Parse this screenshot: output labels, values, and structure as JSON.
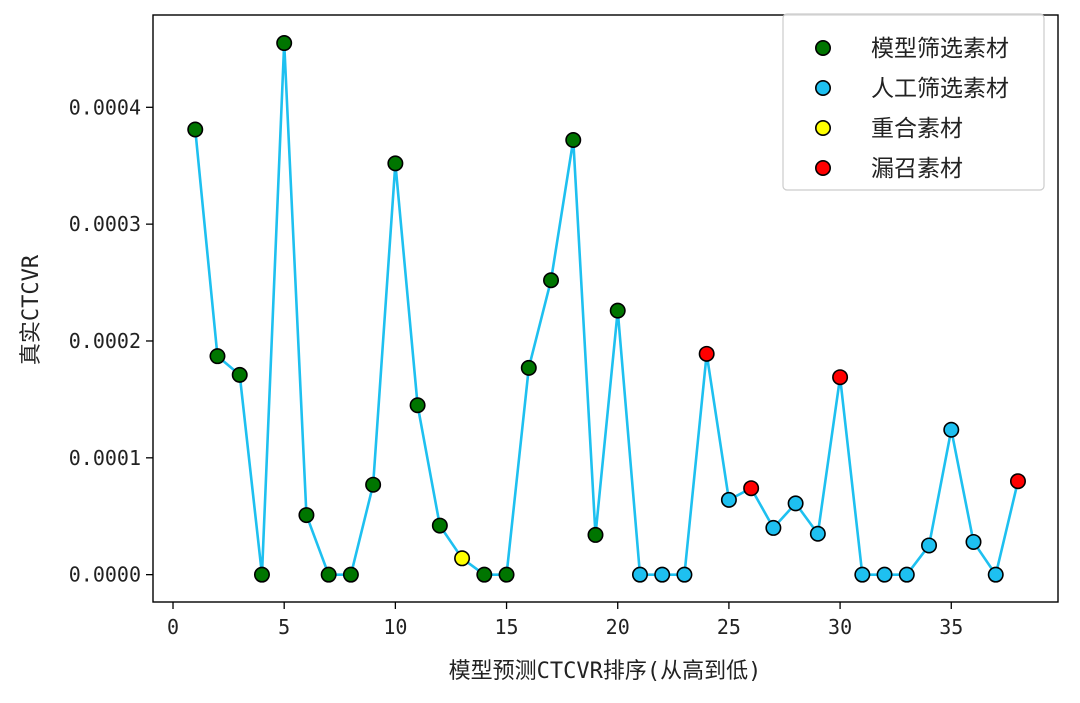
{
  "chart_data": {
    "type": "scatter",
    "title": "",
    "xlabel": "模型预测CTCVR排序(从高到低)",
    "ylabel": "真实CTCVR",
    "xlim": [
      -0.9,
      39.8
    ],
    "ylim": [
      -2.34e-05,
      0.000479
    ],
    "xticks": [
      0,
      5,
      10,
      15,
      20,
      25,
      30,
      35
    ],
    "xtick_labels": [
      "0",
      "5",
      "10",
      "15",
      "20",
      "25",
      "30",
      "35"
    ],
    "yticks": [
      0,
      0.0001,
      0.0002,
      0.0003,
      0.0004
    ],
    "ytick_labels": [
      "0.0000",
      "0.0001",
      "0.0002",
      "0.0003",
      "0.0004"
    ],
    "grid": false,
    "legend_position": "top-right",
    "line": {
      "color": "#1ec0f0",
      "x": [
        1,
        2,
        3,
        4,
        5,
        6,
        7,
        8,
        9,
        10,
        11,
        12,
        13,
        14,
        15,
        16,
        17,
        18,
        19,
        20,
        21,
        22,
        23,
        24,
        25,
        26,
        27,
        28,
        29,
        30,
        31,
        32,
        33,
        34,
        35,
        36,
        37,
        38
      ],
      "y": [
        0.000381,
        0.000187,
        0.000171,
        0,
        0.000455,
        5.1e-05,
        0,
        0,
        7.7e-05,
        0.000352,
        0.000145,
        4.2e-05,
        1.4e-05,
        0,
        0,
        0.000177,
        0.000252,
        0.000372,
        3.4e-05,
        0.000226,
        0,
        0,
        0,
        0.000189,
        6.4e-05,
        7.4e-05,
        4e-05,
        6.1e-05,
        3.5e-05,
        0.000169,
        0,
        0,
        0,
        2.5e-05,
        0.000124,
        2.8e-05,
        0,
        8e-05
      ]
    },
    "series": [
      {
        "name": "模型筛选素材",
        "color": "#007500",
        "x": [
          1,
          2,
          3,
          4,
          5,
          6,
          7,
          8,
          9,
          10,
          11,
          12,
          14,
          15,
          16,
          17,
          18,
          19,
          20
        ],
        "y": [
          0.000381,
          0.000187,
          0.000171,
          0,
          0.000455,
          5.1e-05,
          0,
          0,
          7.7e-05,
          0.000352,
          0.000145,
          4.2e-05,
          0,
          0,
          0.000177,
          0.000252,
          0.000372,
          3.4e-05,
          0.000226
        ]
      },
      {
        "name": "人工筛选素材",
        "color": "#1ec0f0",
        "x": [
          21,
          22,
          23,
          25,
          27,
          28,
          29,
          31,
          32,
          33,
          34,
          35,
          36,
          37
        ],
        "y": [
          0,
          0,
          0,
          6.4e-05,
          4e-05,
          6.1e-05,
          3.5e-05,
          0,
          0,
          0,
          2.5e-05,
          0.000124,
          2.8e-05,
          0
        ]
      },
      {
        "name": "重合素材",
        "color": "#ffff00",
        "x": [
          13
        ],
        "y": [
          1.4e-05
        ]
      },
      {
        "name": "漏召素材",
        "color": "#ff0000",
        "x": [
          24,
          26,
          30,
          38
        ],
        "y": [
          0.000189,
          7.4e-05,
          0.000169,
          8e-05
        ]
      }
    ]
  }
}
